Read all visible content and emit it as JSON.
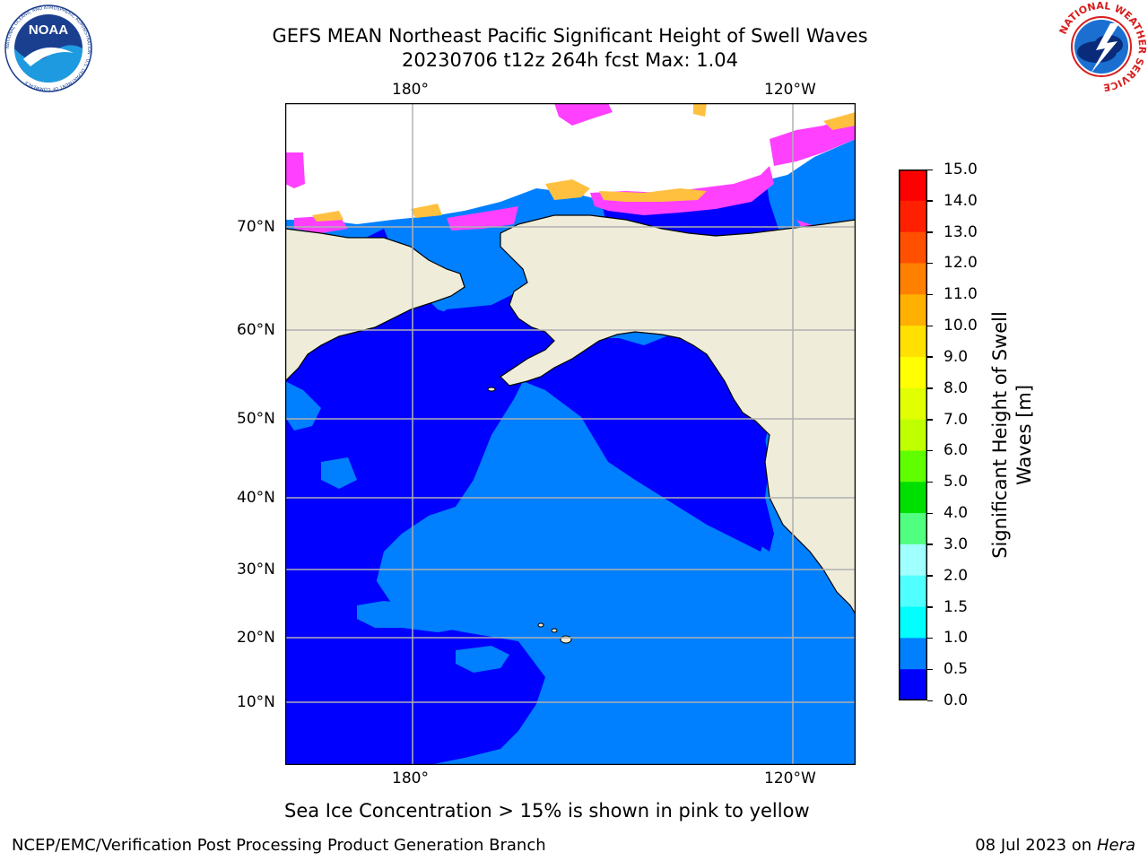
{
  "header": {
    "title_line1": "GEFS MEAN Northeast Pacific Significant Height of Swell Waves",
    "title_line2": "20230706 t12z 264h fcst   Max: 1.04"
  },
  "logos": {
    "left": {
      "name": "noaa-logo",
      "text": "NOAA",
      "ring_text": "NATIONAL OCEANIC AND ATMOSPHERIC ADMINISTRATION · U.S. DEPARTMENT OF COMMERCE"
    },
    "right": {
      "name": "nws-logo",
      "ring_text": "NATIONAL WEATHER SERVICE"
    }
  },
  "map": {
    "lon_labels": [
      "180°",
      "120°W"
    ],
    "lat_labels": [
      "70°N",
      "60°N",
      "50°N",
      "40°N",
      "30°N",
      "20°N",
      "10°N"
    ],
    "colors": {
      "ocean_low": "#0000ff",
      "ocean_mid": "#0080ff",
      "land": "#efedda",
      "ice": "#ffffff",
      "ice_pink": "#ff40ff",
      "ice_yellow": "#ffc040",
      "grid": "#b0b0b0"
    }
  },
  "colorbar": {
    "label_line1": "Significant Height of Swell",
    "label_line2": "Waves [m]",
    "ticks": [
      "15.0",
      "14.0",
      "13.0",
      "12.0",
      "11.0",
      "10.0",
      "9.0",
      "8.0",
      "7.0",
      "6.0",
      "5.0",
      "4.0",
      "3.0",
      "2.0",
      "1.5",
      "1.0",
      "0.5",
      "0.0"
    ],
    "colors": [
      "#ff0000",
      "#ff2000",
      "#ff5000",
      "#ff8000",
      "#ffb000",
      "#ffe000",
      "#ffff00",
      "#e0ff00",
      "#c0ff00",
      "#60ff00",
      "#00e000",
      "#50ff80",
      "#a0ffff",
      "#50ffff",
      "#00ffff",
      "#0080ff",
      "#0000ff"
    ]
  },
  "note": "Sea Ice Concentration > 15% is shown in pink to yellow",
  "footer": {
    "left": "NCEP/EMC/Verification Post Processing Product Generation Branch",
    "right_date": "08 Jul 2023 on ",
    "right_host": "Hera"
  }
}
